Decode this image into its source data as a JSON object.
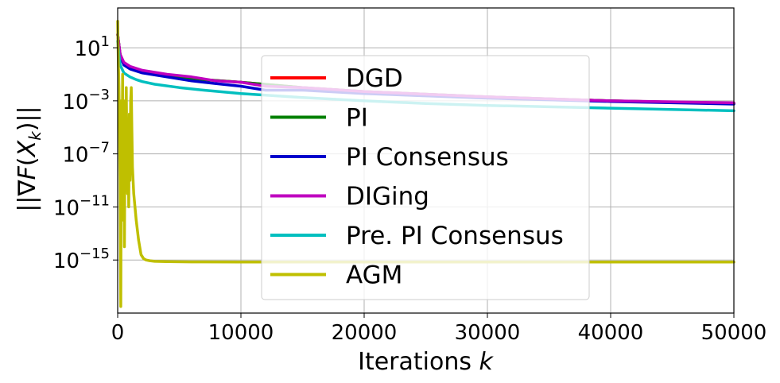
{
  "chart_data": {
    "type": "line",
    "title": "",
    "xlabel_prefix": "Iterations ",
    "xlabel_var": "k",
    "ylabel": "||∇F(X_k)||",
    "ylabel_parts": {
      "open": "||∇",
      "F": "F",
      "paren_open": "(",
      "X": "X",
      "sub": "k",
      "close": ")||"
    },
    "xlim": [
      0,
      50000
    ],
    "ylim_log10": [
      -19,
      4
    ],
    "x_ticks": [
      0,
      10000,
      20000,
      30000,
      40000,
      50000
    ],
    "x_tick_labels": [
      "0",
      "10000",
      "20000",
      "30000",
      "40000",
      "50000"
    ],
    "y_ticks_log10": [
      1,
      -3,
      -7,
      -11,
      -15
    ],
    "y_tick_base": "10",
    "y_tick_exponents": [
      "1",
      "−3",
      "−7",
      "−11",
      "−15"
    ],
    "grid": true,
    "legend_position": "center",
    "series": [
      {
        "name": "DGD",
        "color": "#ff0000",
        "x": [
          0,
          200,
          500,
          1000,
          2000,
          4000,
          7000,
          10000,
          15000,
          20000,
          30000,
          40000,
          50000
        ],
        "log10_y": [
          2,
          0.5,
          -0.2,
          -0.5,
          -0.8,
          -1.1,
          -1.4,
          -1.6,
          -2.0,
          -2.3,
          -2.7,
          -3.0,
          -3.2
        ]
      },
      {
        "name": "PI",
        "color": "#008000",
        "x": [
          0,
          200,
          500,
          1000,
          2000,
          4000,
          7000,
          10000,
          15000,
          20000,
          30000,
          40000,
          50000
        ],
        "log10_y": [
          2,
          0.5,
          -0.2,
          -0.5,
          -0.8,
          -1.1,
          -1.4,
          -1.6,
          -2.0,
          -2.3,
          -2.7,
          -3.0,
          -3.2
        ]
      },
      {
        "name": "PI Consensus",
        "color": "#0000cc",
        "x": [
          0,
          200,
          500,
          1000,
          2000,
          4000,
          6000,
          8000,
          10000,
          12000,
          15000,
          20000,
          30000,
          40000,
          50000
        ],
        "log10_y": [
          2,
          0.4,
          -0.3,
          -0.6,
          -0.9,
          -1.2,
          -1.5,
          -1.7,
          -1.9,
          -2.2,
          -2.2,
          -2.45,
          -2.8,
          -3.05,
          -3.25
        ]
      },
      {
        "name": "DIGing",
        "color": "#bf00bf",
        "x": [
          0,
          200,
          500,
          1000,
          2000,
          4000,
          6000,
          8000,
          10000,
          12000,
          15000,
          20000,
          30000,
          40000,
          50000
        ],
        "log10_y": [
          2,
          0.5,
          -0.1,
          -0.4,
          -0.7,
          -1.0,
          -1.2,
          -1.5,
          -1.6,
          -1.9,
          -2.0,
          -2.3,
          -2.7,
          -3.0,
          -3.15
        ]
      },
      {
        "name": "Pre. PI Consensus",
        "color": "#00bfbf",
        "x": [
          0,
          100,
          200,
          500,
          1000,
          1500,
          2000,
          3000,
          5000,
          7000,
          10000,
          15000,
          20000,
          25000,
          30000,
          40000,
          50000
        ],
        "log10_y": [
          1.5,
          0.5,
          -0.3,
          -0.9,
          -1.2,
          -1.4,
          -1.55,
          -1.75,
          -2.0,
          -2.2,
          -2.45,
          -2.75,
          -3.0,
          -3.2,
          -3.35,
          -3.55,
          -3.75
        ]
      },
      {
        "name": "AGM",
        "color": "#bfbf00",
        "x": [
          0,
          50,
          100,
          150,
          200,
          250,
          300,
          350,
          400,
          450,
          500,
          550,
          600,
          650,
          700,
          750,
          800,
          850,
          900,
          950,
          1000,
          1050,
          1100,
          1150,
          1200,
          1300,
          1500,
          1700,
          1900,
          2100,
          2300,
          2600,
          3000,
          4000,
          6000,
          10000,
          20000,
          30000,
          40000,
          50000
        ],
        "log10_y": [
          3,
          0,
          -2,
          -5,
          -9,
          -18.5,
          -3,
          -9,
          -1,
          -12,
          -3,
          -14,
          -4,
          -8,
          -2,
          -7,
          -10,
          -5,
          -11,
          -4,
          -9,
          -3,
          -2,
          -5,
          -8,
          -10,
          -12,
          -13.5,
          -14.6,
          -14.9,
          -15.0,
          -15.05,
          -15.1,
          -15.12,
          -15.14,
          -15.15,
          -15.15,
          -15.15,
          -15.15,
          -15.15
        ]
      }
    ]
  }
}
